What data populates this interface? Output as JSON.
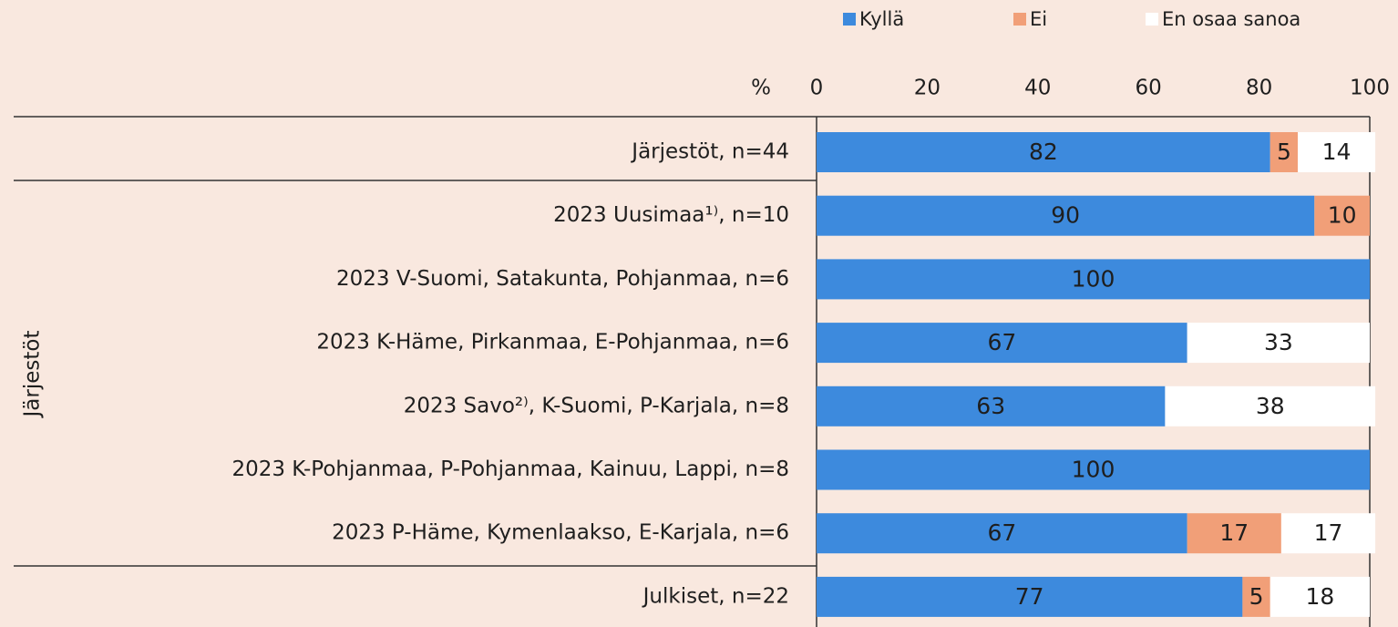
{
  "chart_data": {
    "type": "stacked_barh",
    "xlabel": "%",
    "group_label": "Järjestöt",
    "categories": [
      "Järjestöt, n=44",
      "2023 Uusimaa¹⁾, n=10",
      "2023 V-Suomi, Satakunta, Pohjanmaa, n=6",
      "2023 K-Häme, Pirkanmaa, E-Pohjanmaa, n=6",
      "2023 Savo²⁾, K-Suomi, P-Karjala, n=8",
      "2023 K-Pohjanmaa, P-Pohjanmaa, Kainuu, Lappi, n=8",
      "2023 P-Häme, Kymenlaakso, E-Karjala, n=6",
      "Julkiset, n=22"
    ],
    "series": [
      {
        "name": "Kyllä",
        "color": "#3d8add",
        "values": [
          82,
          90,
          100,
          67,
          63,
          100,
          67,
          77
        ]
      },
      {
        "name": "Ei",
        "color": "#f19f78",
        "values": [
          5,
          10,
          null,
          null,
          null,
          null,
          17,
          5
        ]
      },
      {
        "name": "En osaa sanoa",
        "color": "#ffffff",
        "values": [
          14,
          null,
          null,
          33,
          38,
          null,
          17,
          18
        ]
      }
    ],
    "xlim": [
      0,
      100
    ],
    "xticks": [
      0,
      20,
      40,
      60,
      80,
      100
    ]
  }
}
